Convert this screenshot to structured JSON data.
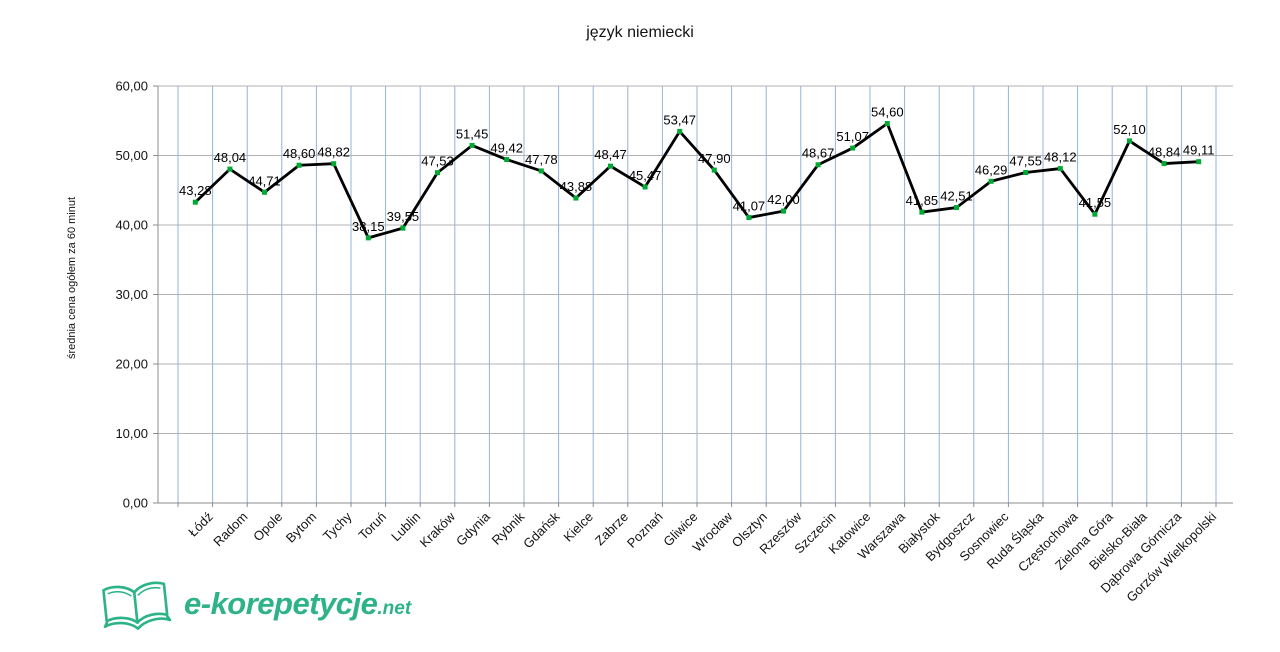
{
  "chart_data": {
    "type": "line",
    "title": "język niemiecki",
    "xlabel": "",
    "ylabel": "średnia cena ogółem za 60 minut",
    "categories": [
      "Łódź",
      "Radom",
      "Opole",
      "Bytom",
      "Tychy",
      "Toruń",
      "Lublin",
      "Kraków",
      "Gdynia",
      "Rybnik",
      "Gdańsk",
      "Kielce",
      "Zabrze",
      "Poznań",
      "Gliwice",
      "Wrocław",
      "Olsztyn",
      "Rzeszów",
      "Szczecin",
      "Katowice",
      "Warszawa",
      "Białystok",
      "Bydgoszcz",
      "Sosnowiec",
      "Ruda Śląska",
      "Częstochowa",
      "Zielona Góra",
      "Bielsko-Biała",
      "Dąbrowa Górnicza",
      "Gorzów Wielkopolski"
    ],
    "values": [
      43.28,
      48.04,
      44.71,
      48.6,
      48.82,
      38.15,
      39.55,
      47.53,
      51.45,
      49.42,
      47.78,
      43.88,
      48.47,
      45.47,
      53.47,
      47.9,
      41.07,
      42.0,
      48.67,
      51.07,
      54.6,
      41.85,
      42.51,
      46.29,
      47.55,
      48.12,
      41.55,
      52.1,
      48.84,
      49.11
    ],
    "display_labels": [
      "43,28",
      "48,04",
      "44,71",
      "48,60",
      "48,82",
      "38,15",
      "39,55",
      "47,53",
      "51,45",
      "49,42",
      "47,78",
      "43,88",
      "48,47",
      "45,47",
      "53,47",
      "47,90",
      "41,07",
      "42,00",
      "48,67",
      "51,07",
      "54,60",
      "41,85",
      "42,51",
      "46,29",
      "47,55",
      "48,12",
      "41,55",
      "52,10",
      "48,84",
      "49,11"
    ],
    "ylim": [
      0,
      60
    ],
    "ytick_labels": [
      "0,00",
      "10,00",
      "20,00",
      "30,00",
      "40,00",
      "50,00",
      "60,00"
    ],
    "grid": {
      "horizontal": true,
      "vertical": true
    },
    "legend": "none",
    "colors": {
      "line": "#000000",
      "marker": "#00a933",
      "vgrid": "#92b4da",
      "hgrid": "#b3b3b3",
      "axis": "#8c8c8c",
      "text": "#141414"
    }
  },
  "branding": {
    "name": "e-korepetycje",
    "tld": ".net",
    "color": "#2eb389",
    "icon": "open-book-icon"
  }
}
